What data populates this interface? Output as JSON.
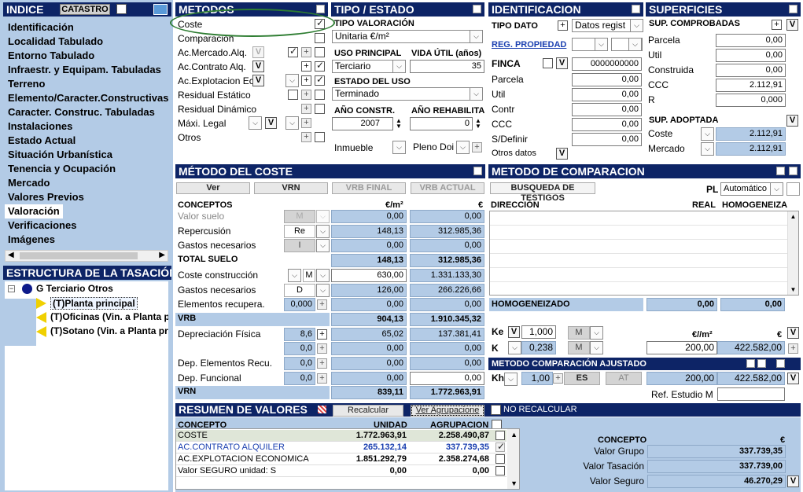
{
  "indice": {
    "title": "INDICE",
    "catastro": "CATASTRO",
    "items": [
      "Identificación",
      "Localidad Tabulado",
      "Entorno Tabulado",
      "Infraestr. y Equipam. Tabuladas",
      "Terreno",
      "Elemento/Caracter.Constructivas",
      "Caracter. Construc. Tabuladas",
      "Instalaciones",
      "Estado Actual",
      "Situación Urbanística",
      "Tenencia y Ocupación",
      "Mercado",
      "Valores Previos",
      "Valoración",
      "Verificaciones",
      "Imágenes"
    ],
    "selected_index": 13
  },
  "estructura": {
    "title": "ESTRUCTURA DE LA TASACIÓN",
    "root": "G Terciario Otros",
    "children": [
      "(T)Planta principal",
      "(T)Oficinas (Vin. a Planta p",
      "(T)Sotano (Vin. a Planta pr"
    ]
  },
  "metodos": {
    "title": "METODOS",
    "rows": [
      "Coste",
      "Comparación",
      "Ac.Mercado.Alq.",
      "Ac.Contrato Alq.",
      "Ac.Explotacion Ec",
      "Residual Estático",
      "Residual Dinámico",
      "Máxi. Legal",
      "Otros"
    ],
    "v": "V",
    "plus": "+"
  },
  "tipo": {
    "title": "TIPO / ESTADO",
    "tipo_valoracion_label": "TIPO VALORACIÓN",
    "tipo_valoracion": "Unitaria €/m²",
    "uso_label": "USO PRINCIPAL",
    "uso": "Terciario",
    "vida_label": "VIDA ÚTIL (años)",
    "vida": "35",
    "estado_label": "ESTADO DEL USO",
    "estado": "Terminado",
    "anio_constr_label": "AÑO CONSTR.",
    "anio_constr": "2007",
    "anio_rehab_label": "AÑO REHABILITA",
    "anio_rehab": "0",
    "inmueble": "Inmueble",
    "pleno": "Pleno Doi"
  },
  "ident": {
    "title": "IDENTIFICACION",
    "tipo_dato_label": "TIPO DATO",
    "tipo_dato": "Datos regist",
    "reg_link": "REG. PROPIEDAD",
    "finca_label": "FINCA",
    "finca": "0000000000",
    "rows": [
      {
        "label": "Parcela",
        "value": "0,00"
      },
      {
        "label": "Util",
        "value": "0,00"
      },
      {
        "label": "Contr",
        "value": "0,00"
      },
      {
        "label": "CCC",
        "value": "0,00"
      },
      {
        "label": "S/Definir",
        "value": "0,00"
      }
    ],
    "otros": "Otros datos"
  },
  "superficies": {
    "title": "SUPERFICIES",
    "comprobadas_label": "SUP. COMPROBADAS",
    "comprobadas": [
      {
        "label": "Parcela",
        "value": "0,00"
      },
      {
        "label": "Util",
        "value": "0,00"
      },
      {
        "label": "Construida",
        "value": "0,00"
      },
      {
        "label": "CCC",
        "value": "2.112,91"
      },
      {
        "label": "R",
        "value": "0,000"
      }
    ],
    "adoptada_label": "SUP. ADOPTADA",
    "adoptada": [
      {
        "label": "Coste",
        "value": "2.112,91"
      },
      {
        "label": "Mercado",
        "value": "2.112,91"
      }
    ]
  },
  "coste": {
    "title": "MÉTODO DEL COSTE",
    "buttons": [
      "Ver",
      "VRN",
      "VRB FINAL",
      "VRB ACTUAL"
    ],
    "col_concepto": "CONCEPTOS",
    "col_m2": "€/m²",
    "col_eur": "€",
    "rows": [
      {
        "label": "Valor suelo",
        "sel": "M",
        "m2": "0,00",
        "eur": "0,00",
        "dim": true
      },
      {
        "label": "Repercusión",
        "sel": "Re",
        "m2": "148,13",
        "eur": "312.985,36"
      },
      {
        "label": "Gastos necesarios",
        "sel": "I",
        "m2": "0,00",
        "eur": "0,00"
      },
      {
        "label": "TOTAL SUELO",
        "m2": "148,13",
        "eur": "312.985,36",
        "bold": true
      },
      {
        "label": "Coste construcción",
        "sel": "M",
        "m2": "630,00",
        "eur": "1.331.133,30",
        "white": true
      },
      {
        "label": "Gastos necesarios",
        "sel": "D",
        "m2": "126,00",
        "eur": "266.226,66"
      },
      {
        "label": "Elementos recupera.",
        "pct": "0,000",
        "m2": "0,00",
        "eur": "0,00"
      },
      {
        "label": "VRB",
        "m2": "904,13",
        "eur": "1.910.345,32",
        "bar": true
      },
      {
        "label": "Depreciación Física",
        "pct": "8,6",
        "m2": "65,02",
        "eur": "137.381,41"
      },
      {
        "label": "",
        "pct": "0,0",
        "m2": "0,00",
        "eur": "0,00"
      },
      {
        "label": "Dep. Elementos Recu.",
        "pct": "0,0",
        "m2": "0,00",
        "eur": "0,00"
      },
      {
        "label": "Dep. Funcional",
        "pct": "0,0",
        "m2": "0,00",
        "eur": "0,00",
        "whiteeur": true
      },
      {
        "label": "VRN",
        "m2": "839,11",
        "eur": "1.772.963,91",
        "bar": true
      }
    ]
  },
  "comparacion": {
    "title": "METODO DE COMPARACION",
    "busqueda": "BUSQUEDA DE TESTIGOS",
    "pl": "PL",
    "automatico": "Automático",
    "col_direccion": "DIRECCIÓN",
    "col_real": "REAL",
    "col_homog": "HOMOGENEIZA",
    "homog_label": "HOMOGENEIZADO",
    "homog_real": "0,00",
    "homog_val": "0,00",
    "ke_label": "Ke",
    "ke": "1,000",
    "k_label": "K",
    "k": "0,238",
    "m": "M",
    "col_m2": "€//m²",
    "col_eur": "€",
    "m2_val": "200,00",
    "eur_val": "422.582,00"
  },
  "ajustado": {
    "title": "METODO COMPARACIÓN AJUSTADO",
    "kh_label": "Kh",
    "kh": "1,00",
    "es": "ES",
    "at": "AT",
    "m2_val": "200,00",
    "eur_val": "422.582,00",
    "ref": "Ref. Estudio M"
  },
  "resumen": {
    "title": "RESUMEN DE VALORES",
    "recalcular": "Recalcular",
    "ver_agrup": "Ver Agrupacione",
    "no_recalcular": "NO RECALCULAR",
    "col_concepto": "CONCEPTO",
    "col_unidad": "UNIDAD",
    "col_agrup": "AGRUPACION",
    "rows": [
      {
        "c": "COSTE",
        "u": "1.772.963,91",
        "a": "2.258.490,87"
      },
      {
        "c": "AC.CONTRATO ALQUILER",
        "u": "265.132,14",
        "a": "337.739,35",
        "blue": true
      },
      {
        "c": "AC.EXPLOTACION ECONOMICA",
        "u": "1.851.292,79",
        "a": "2.358.274,68"
      },
      {
        "c": "Valor SEGURO unidad: S",
        "u": "0,00",
        "a": "0,00"
      }
    ],
    "concepto_label": "CONCEPTO",
    "eur_label": "€",
    "finales": [
      {
        "label": "Valor Grupo",
        "value": "337.739,35"
      },
      {
        "label": "Valor Tasación",
        "value": "337.739,00"
      },
      {
        "label": "Valor Seguro",
        "value": "46.270,29"
      }
    ]
  },
  "colors": {
    "header": "#0d2466",
    "panel": "#b3cbe6",
    "oval": "#2e7d32"
  }
}
